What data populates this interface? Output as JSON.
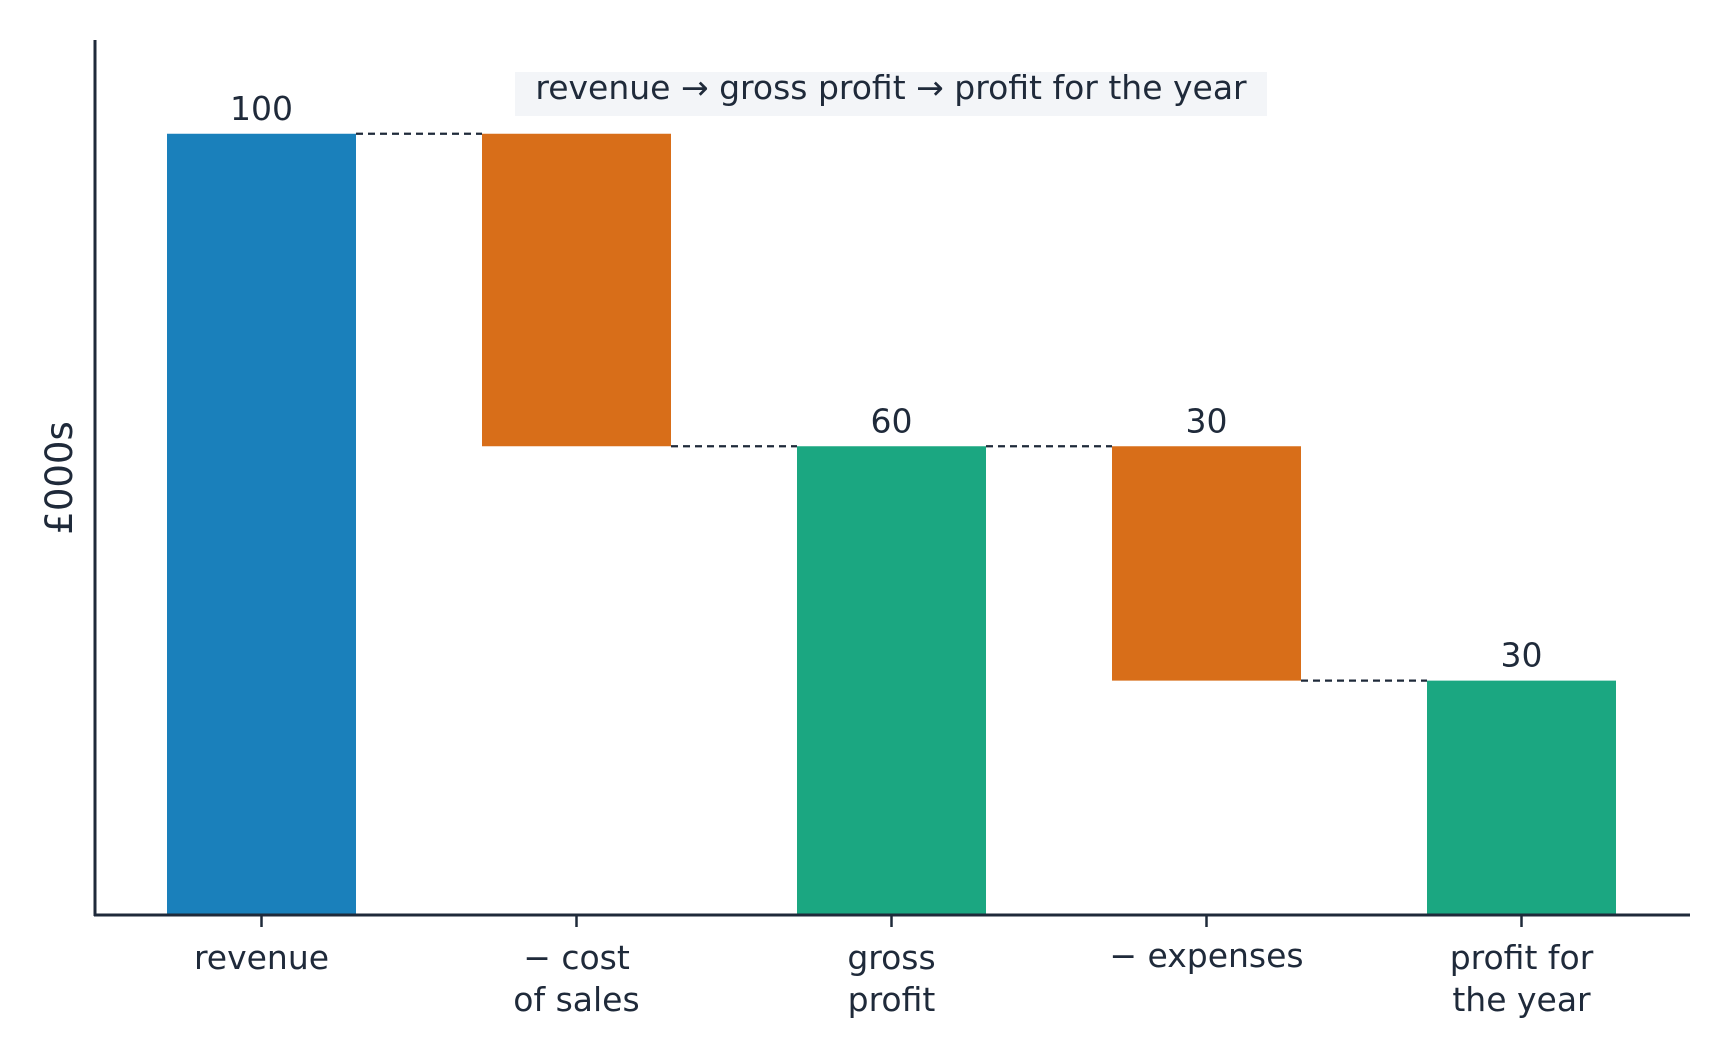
{
  "chart_data": {
    "type": "bar",
    "subtype": "waterfall",
    "annotation": "revenue → gross profit → profit for the year",
    "ylabel": "£000s",
    "xlabel": "",
    "ylim": [
      0,
      112
    ],
    "grid": false,
    "categories": [
      {
        "lines": [
          "revenue"
        ]
      },
      {
        "lines": [
          "− cost",
          "of sales"
        ]
      },
      {
        "lines": [
          "gross",
          "profit"
        ]
      },
      {
        "lines": [
          "− expenses"
        ]
      },
      {
        "lines": [
          "profit for",
          "the year"
        ]
      }
    ],
    "bars": [
      {
        "kind": "total",
        "start": 0,
        "end": 100,
        "value_label": "100"
      },
      {
        "kind": "decrease",
        "start": 100,
        "end": 60,
        "value_label": ""
      },
      {
        "kind": "total",
        "start": 0,
        "end": 60,
        "value_label": "60"
      },
      {
        "kind": "decrease",
        "start": 60,
        "end": 30,
        "value_label": "30"
      },
      {
        "kind": "total",
        "start": 0,
        "end": 30,
        "value_label": "30"
      }
    ],
    "colors": {
      "total_first": "#1a80bb",
      "decrease": "#d86e19",
      "subtotal": "#1ba781",
      "axis": "#1f2a3a",
      "connector": "#1f2a3a"
    }
  }
}
